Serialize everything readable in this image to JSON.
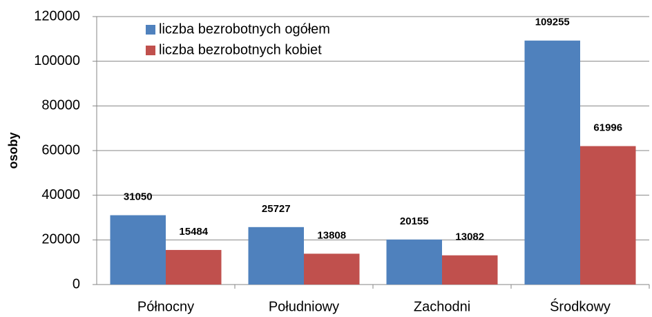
{
  "chart_data": {
    "type": "bar",
    "y_label": "osoby",
    "categories": [
      "Północny",
      "Południowy",
      "Zachodni",
      "Środkowy"
    ],
    "series": [
      {
        "name": "liczba bezrobotnych ogółem",
        "color": "#4f81bd",
        "values": [
          31050,
          25727,
          20155,
          109255
        ]
      },
      {
        "name": "liczba bezrobotnych kobiet",
        "color": "#c0504d",
        "values": [
          15484,
          13808,
          13082,
          61996
        ]
      }
    ],
    "ylim": [
      0,
      120000
    ],
    "yticks": [
      0,
      20000,
      40000,
      60000,
      80000,
      100000,
      120000
    ],
    "grid": true,
    "legend": "top-left"
  }
}
